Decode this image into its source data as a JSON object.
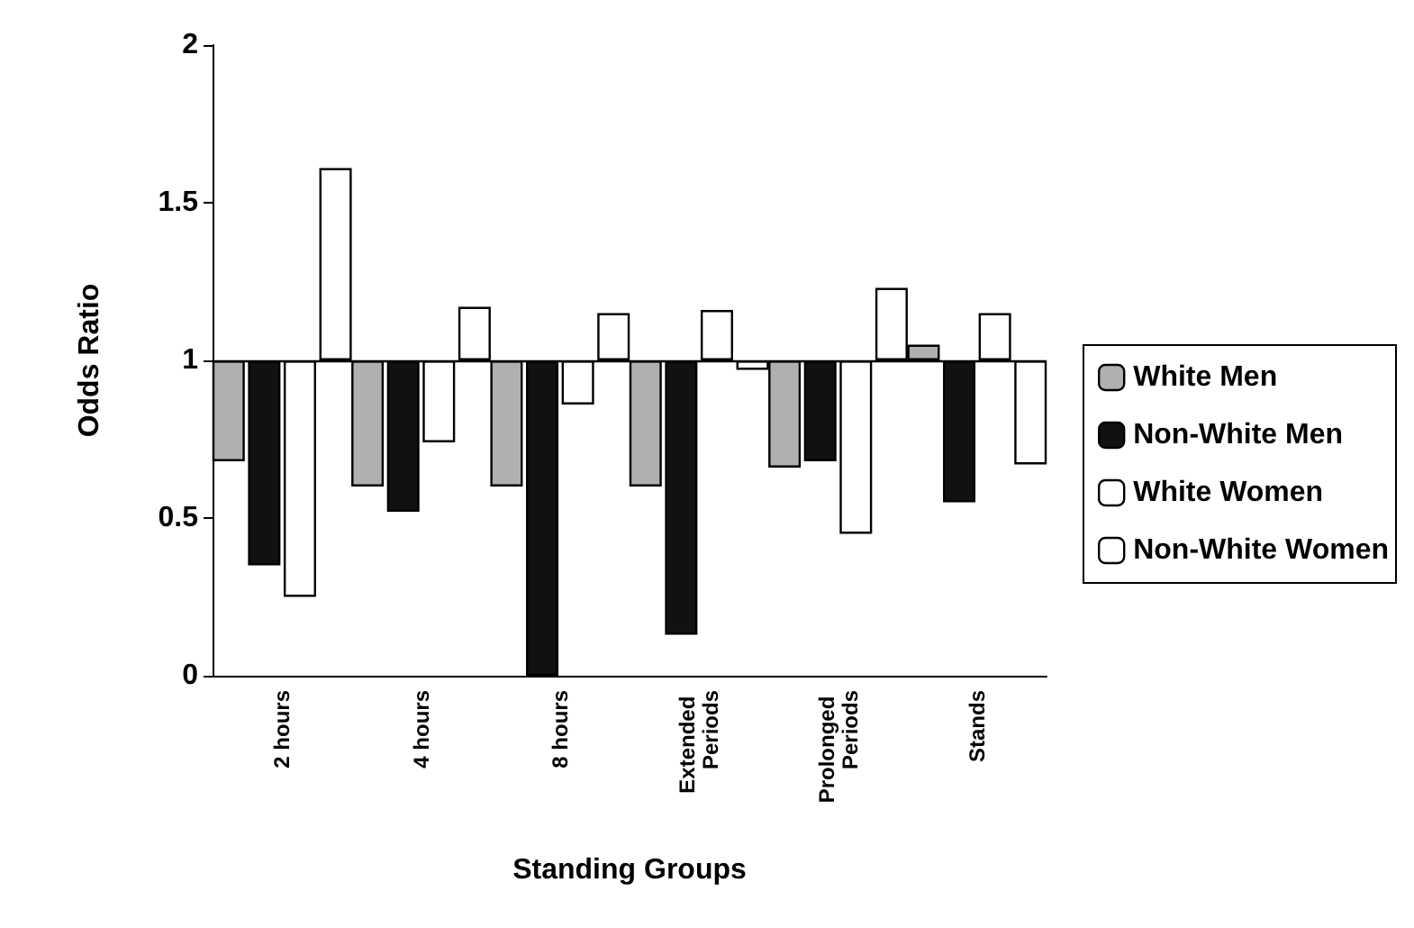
{
  "chart_data": {
    "type": "bar",
    "xlabel": "Standing Groups",
    "ylabel": "Odds Ratio",
    "categories": [
      "2 hours",
      "4 hours",
      "8 hours",
      "Extended Periods",
      "Prolonged Periods",
      "Stands"
    ],
    "series": [
      {
        "name": "White Men",
        "color": "#b0b0b0",
        "base": [
          1,
          1,
          1,
          1,
          1,
          1
        ],
        "values": [
          -0.32,
          -0.4,
          -0.4,
          -0.4,
          -0.34,
          0.05
        ]
      },
      {
        "name": "Non-White Men",
        "color": "#111111",
        "base": [
          1,
          1,
          1,
          1,
          1,
          1
        ],
        "values": [
          -0.65,
          -0.48,
          -1,
          -0.87,
          -0.32,
          -0.45
        ]
      },
      {
        "name": "White Women",
        "color": "#ffffff",
        "base": [
          1,
          1,
          1,
          1,
          1,
          1
        ],
        "values": [
          -0.75,
          -0.26,
          -0.14,
          0.16,
          -0.55,
          0.15
        ]
      },
      {
        "name": "Non-White Women",
        "color": "#ffffff",
        "base": [
          1,
          1,
          1,
          1,
          1,
          1
        ],
        "values": [
          0.61,
          0.17,
          0.15,
          -0.03,
          0.23,
          -0.33
        ]
      }
    ],
    "ylim": [
      0,
      2
    ],
    "yticks": [
      0,
      0.5,
      1,
      1.5,
      2
    ],
    "grid": false,
    "legend": "right",
    "ref_lines": [
      {
        "axis": "y",
        "value": 1
      }
    ]
  }
}
